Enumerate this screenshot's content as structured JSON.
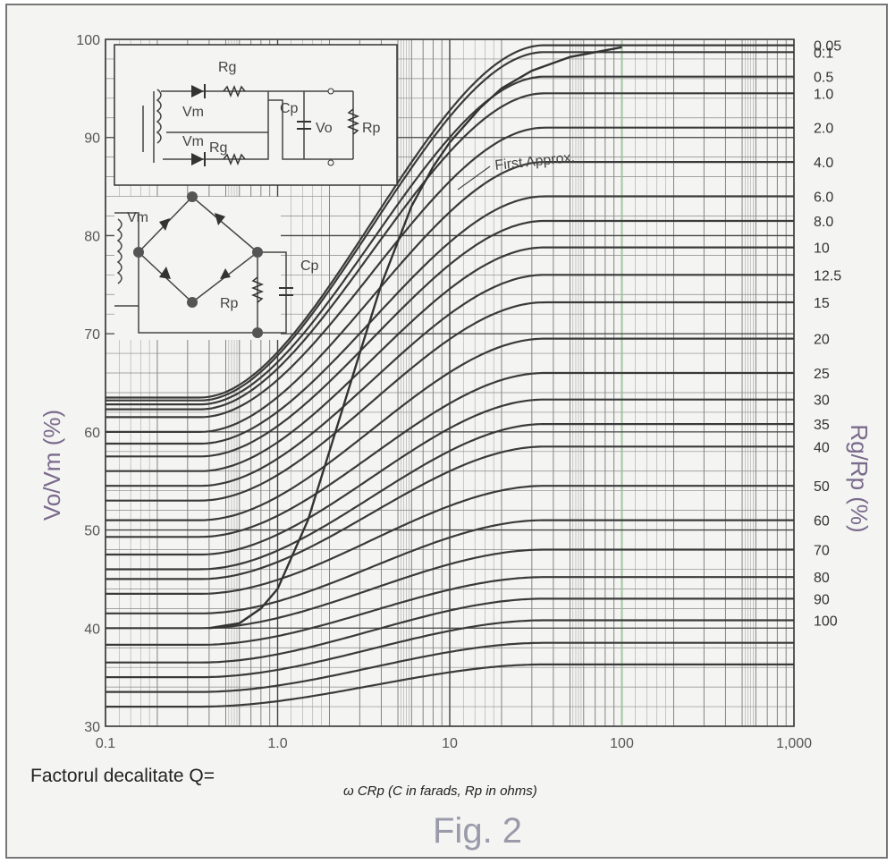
{
  "figure_label": "Fig. 2",
  "x_title_left": "Factorul decalitate Q=",
  "x_title_right": "ω CRp (C in farads, Rp in ohms)",
  "inset": {
    "labels": [
      "Rg",
      "Vm",
      "Vm",
      "Rg",
      "Cp",
      "Vo",
      "Rp",
      "Vm",
      "Cp",
      "Rp"
    ]
  },
  "chart_data": {
    "type": "line",
    "x_scale": "log",
    "xlim": [
      0.1,
      1000
    ],
    "ylim": [
      30,
      100
    ],
    "y_ticks": [
      30,
      40,
      50,
      60,
      70,
      80,
      90,
      100
    ],
    "y_tick_labels": [
      "30",
      "40",
      "50",
      "60",
      "70",
      "80",
      "90",
      "100"
    ],
    "x_ticks": [
      0.1,
      1,
      10,
      100,
      1000
    ],
    "x_tick_labels": [
      "0.1",
      "1.0",
      "10",
      "100",
      "1,000"
    ],
    "ylabel": "Vo/Vm (%)",
    "y2label": "Rg/Rp (%)",
    "grid": true,
    "annotation": "First Approx.",
    "series": [
      {
        "name": "0.05",
        "low": 63.5,
        "high": 99.4
      },
      {
        "name": "0.1",
        "low": 63.2,
        "high": 98.7
      },
      {
        "name": "0.5",
        "low": 62.8,
        "high": 96.2
      },
      {
        "name": "1.0",
        "low": 62.3,
        "high": 94.5
      },
      {
        "name": "2.0",
        "low": 61.5,
        "high": 91.0
      },
      {
        "name": "4.0",
        "low": 60.0,
        "high": 87.5
      },
      {
        "name": "6.0",
        "low": 58.8,
        "high": 84.0
      },
      {
        "name": "8.0",
        "low": 57.5,
        "high": 81.5
      },
      {
        "name": "10",
        "low": 56.0,
        "high": 78.8
      },
      {
        "name": "12.5",
        "low": 54.5,
        "high": 76.0
      },
      {
        "name": "15",
        "low": 53.0,
        "high": 73.2
      },
      {
        "name": "20",
        "low": 51.0,
        "high": 69.5
      },
      {
        "name": "25",
        "low": 49.3,
        "high": 66.0
      },
      {
        "name": "30",
        "low": 47.5,
        "high": 63.3
      },
      {
        "name": "35",
        "low": 46.0,
        "high": 60.8
      },
      {
        "name": "40",
        "low": 45.0,
        "high": 58.5
      },
      {
        "name": "50",
        "low": 43.5,
        "high": 54.5
      },
      {
        "name": "60",
        "low": 41.5,
        "high": 51.0
      },
      {
        "name": "70",
        "low": 40.0,
        "high": 48.0
      },
      {
        "name": "80",
        "low": 38.3,
        "high": 45.2
      },
      {
        "name": "90",
        "low": 36.5,
        "high": 43.0
      },
      {
        "name": "100",
        "low": 35.0,
        "high": 40.8
      },
      {
        "name": "",
        "low": 33.5,
        "high": 38.5
      },
      {
        "name": "",
        "low": 32.0,
        "high": 36.3
      }
    ],
    "first_approx": {
      "x": [
        0.4,
        0.6,
        0.8,
        1.0,
        1.5,
        2,
        3,
        4,
        6,
        8,
        10,
        15,
        20,
        30,
        50,
        100
      ],
      "y": [
        40,
        40.5,
        42,
        44,
        51,
        58,
        68,
        75,
        83,
        87,
        89.5,
        93,
        95,
        96.8,
        98.2,
        99.2
      ]
    },
    "colors": {
      "curve": "#3a3a3a",
      "grid": "#555555",
      "accent_grid": "#9ccc9c"
    }
  }
}
